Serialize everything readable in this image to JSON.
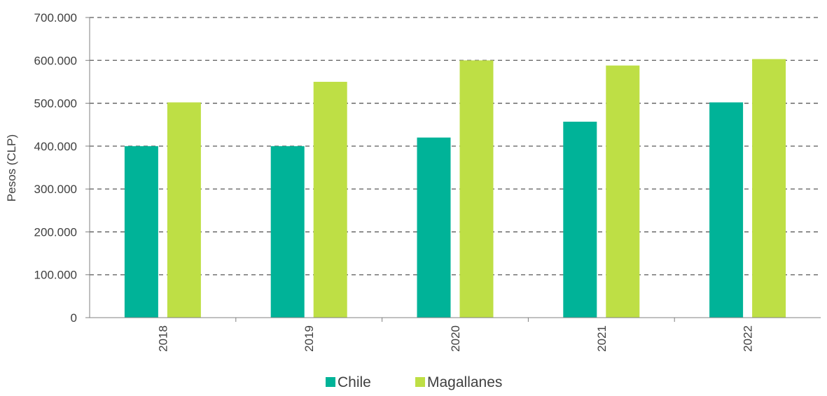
{
  "chart_data": {
    "type": "bar",
    "title": "",
    "xlabel": "",
    "ylabel": "Pesos (CLP)",
    "categories": [
      "2018",
      "2019",
      "2020",
      "2021",
      "2022"
    ],
    "series": [
      {
        "name": "Chile",
        "color": "#00B398",
        "values": [
          400000,
          400000,
          420000,
          457000,
          502000
        ]
      },
      {
        "name": "Magallanes",
        "color": "#BEDF45",
        "values": [
          502000,
          550000,
          600000,
          588000,
          603000
        ]
      }
    ],
    "ylim": [
      0,
      700000
    ],
    "yticks": [
      0,
      100000,
      200000,
      300000,
      400000,
      500000,
      600000,
      700000
    ],
    "ytick_labels": [
      "0",
      "100.000",
      "200.000",
      "300.000",
      "400.000",
      "500.000",
      "600.000",
      "700.000"
    ],
    "grid": true,
    "grid_style": "dashed",
    "legend_position": "bottom-center"
  }
}
